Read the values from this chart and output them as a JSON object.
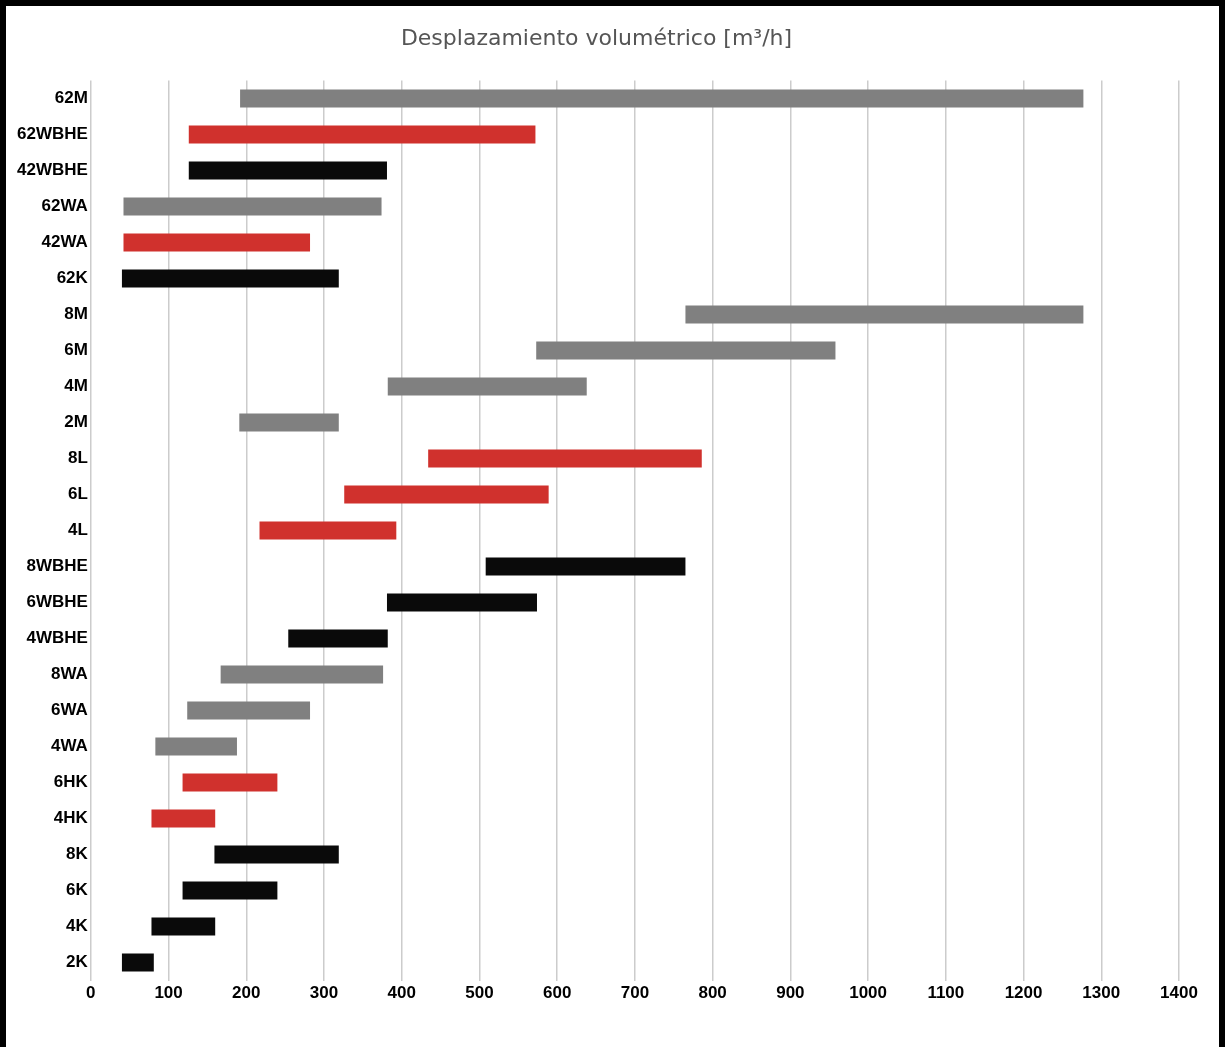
{
  "chart_data": {
    "type": "bar",
    "orientation": "horizontal",
    "title": "Desplazamiento volumétrico [m³/h]",
    "categories": [
      "62M",
      "62WBHE",
      "42WBHE",
      "62WA",
      "42WA",
      "62K",
      "8M",
      "6M",
      "4M",
      "2M",
      "8L",
      "6L",
      "4L",
      "8WBHE",
      "6WBHE",
      "4WBHE",
      "8WA",
      "6WA",
      "4WA",
      "6HK",
      "4HK",
      "8K",
      "6K",
      "4K",
      "2K"
    ],
    "base": [
      192,
      126,
      126,
      42,
      42,
      40,
      765,
      573,
      382,
      191,
      434,
      326,
      217,
      508,
      381,
      254,
      167,
      124,
      83,
      118,
      78,
      159,
      118,
      78,
      40
    ],
    "values": [
      1085,
      446,
      255,
      332,
      240,
      279,
      512,
      385,
      256,
      128,
      352,
      263,
      176,
      257,
      193,
      128,
      209,
      158,
      105,
      122,
      82,
      160,
      122,
      82,
      41
    ],
    "colors": [
      "#808080",
      "#d0312d",
      "#0a0a0a",
      "#808080",
      "#d0312d",
      "#0a0a0a",
      "#808080",
      "#808080",
      "#808080",
      "#808080",
      "#d0312d",
      "#d0312d",
      "#d0312d",
      "#0a0a0a",
      "#0a0a0a",
      "#0a0a0a",
      "#808080",
      "#808080",
      "#808080",
      "#d0312d",
      "#d0312d",
      "#0a0a0a",
      "#0a0a0a",
      "#0a0a0a",
      "#0a0a0a"
    ],
    "xlim": [
      0,
      1400
    ],
    "xticks": [
      0,
      100,
      200,
      300,
      400,
      500,
      600,
      700,
      800,
      900,
      1000,
      1100,
      1200,
      1300,
      1400
    ],
    "grid": "x",
    "legend": false
  }
}
